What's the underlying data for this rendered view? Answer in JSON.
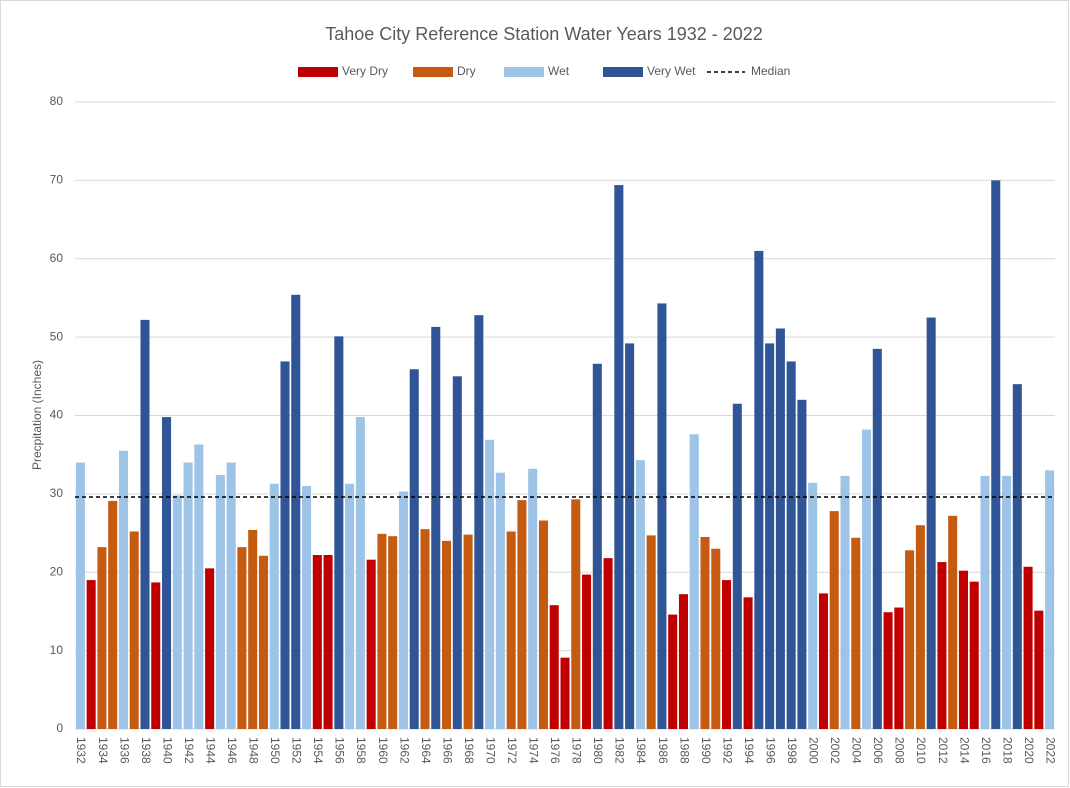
{
  "chart_data": {
    "type": "bar",
    "title": "Tahoe City Reference Station Water Years 1932 - 2022",
    "y_label": "Precpitation (Inches)",
    "categories": [
      "1932",
      null,
      "1934",
      null,
      "1936",
      null,
      "1938",
      null,
      "1940",
      null,
      "1942",
      null,
      "1944",
      null,
      "1946",
      null,
      "1948",
      null,
      "1950",
      null,
      "1952",
      null,
      "1954",
      null,
      "1956",
      null,
      "1958",
      null,
      "1960",
      null,
      "1962",
      null,
      "1964",
      null,
      "1966",
      null,
      "1968",
      null,
      "1970",
      null,
      "1972",
      null,
      "1974",
      null,
      "1976",
      null,
      "1978",
      null,
      "1980",
      null,
      "1982",
      null,
      "1984",
      null,
      "1986",
      null,
      "1988",
      null,
      "1990",
      null,
      "1992",
      null,
      "1994",
      null,
      "1996",
      null,
      "1998",
      null,
      "2000",
      null,
      "2002",
      null,
      "2004",
      null,
      "2006",
      null,
      "2008",
      null,
      "2010",
      null,
      "2012",
      null,
      "2014",
      null,
      "2016",
      null,
      "2018",
      null,
      "2020",
      null,
      "2022"
    ],
    "series": [
      {
        "name": "Very Dry",
        "color": "#c00000",
        "values": [
          null,
          19,
          null,
          null,
          null,
          null,
          null,
          18.7,
          null,
          null,
          null,
          null,
          20.5,
          null,
          null,
          null,
          null,
          null,
          null,
          null,
          null,
          null,
          22.2,
          22.2,
          null,
          null,
          null,
          21.6,
          null,
          null,
          null,
          null,
          null,
          null,
          null,
          null,
          null,
          null,
          null,
          null,
          null,
          null,
          null,
          null,
          15.8,
          9.1,
          null,
          19.7,
          null,
          21.8,
          null,
          null,
          null,
          null,
          null,
          14.6,
          17.2,
          null,
          null,
          null,
          19,
          null,
          16.8,
          null,
          null,
          null,
          null,
          null,
          null,
          17.3,
          null,
          null,
          null,
          null,
          null,
          14.9,
          15.5,
          null,
          null,
          null,
          21.3,
          null,
          20.2,
          18.8,
          null,
          null,
          null,
          null,
          20.7,
          15.1,
          null
        ]
      },
      {
        "name": "Dry",
        "color": "#c55a11",
        "values": [
          null,
          null,
          23.2,
          29.1,
          null,
          25.2,
          null,
          null,
          null,
          null,
          null,
          null,
          null,
          null,
          null,
          23.2,
          25.4,
          22.1,
          null,
          null,
          null,
          null,
          null,
          null,
          null,
          null,
          null,
          null,
          24.9,
          24.6,
          null,
          null,
          25.5,
          null,
          24,
          null,
          24.8,
          null,
          null,
          null,
          25.2,
          29.2,
          null,
          26.6,
          null,
          null,
          29.3,
          null,
          null,
          null,
          null,
          null,
          null,
          24.7,
          null,
          null,
          null,
          null,
          24.5,
          23,
          null,
          null,
          null,
          null,
          null,
          null,
          null,
          null,
          null,
          null,
          27.8,
          null,
          24.4,
          null,
          null,
          null,
          null,
          22.8,
          26,
          null,
          null,
          27.2,
          null,
          null,
          null,
          null,
          null,
          null,
          null,
          null,
          null
        ]
      },
      {
        "name": "Wet",
        "color": "#9dc3e6",
        "values": [
          34,
          null,
          null,
          null,
          35.5,
          null,
          null,
          null,
          null,
          29.8,
          34,
          36.3,
          null,
          32.4,
          34,
          null,
          null,
          null,
          31.3,
          null,
          null,
          31,
          null,
          null,
          null,
          31.3,
          39.8,
          null,
          null,
          null,
          30.3,
          null,
          null,
          null,
          null,
          null,
          null,
          null,
          36.9,
          32.7,
          null,
          null,
          33.2,
          null,
          null,
          null,
          null,
          null,
          null,
          null,
          null,
          null,
          34.3,
          null,
          null,
          null,
          null,
          37.6,
          null,
          null,
          null,
          null,
          null,
          null,
          null,
          null,
          null,
          null,
          31.4,
          null,
          null,
          32.3,
          null,
          38.2,
          null,
          null,
          null,
          null,
          null,
          null,
          null,
          null,
          null,
          null,
          32.3,
          null,
          32.3,
          null,
          null,
          null,
          33
        ]
      },
      {
        "name": "Very Wet",
        "color": "#2f5597",
        "values": [
          null,
          null,
          null,
          null,
          null,
          null,
          52.2,
          null,
          39.8,
          null,
          null,
          null,
          null,
          null,
          null,
          null,
          null,
          null,
          null,
          46.9,
          55.4,
          null,
          null,
          null,
          50.1,
          null,
          null,
          null,
          null,
          null,
          null,
          45.9,
          null,
          51.3,
          null,
          45,
          null,
          52.8,
          null,
          null,
          null,
          null,
          null,
          null,
          null,
          null,
          null,
          null,
          46.6,
          null,
          69.4,
          49.2,
          null,
          null,
          54.3,
          null,
          null,
          null,
          null,
          null,
          null,
          41.5,
          null,
          61,
          49.2,
          51.1,
          46.9,
          42,
          null,
          null,
          null,
          null,
          null,
          null,
          48.5,
          null,
          null,
          null,
          null,
          52.5,
          null,
          null,
          null,
          null,
          null,
          70,
          null,
          44,
          null,
          null,
          null
        ]
      }
    ],
    "median": {
      "name": "Median",
      "value": 29.6,
      "color": "#000000"
    },
    "ylim": [
      0,
      80
    ],
    "yticks": [
      0,
      10,
      20,
      30,
      40,
      50,
      60,
      70,
      80
    ],
    "grid": true,
    "legend": "top"
  }
}
